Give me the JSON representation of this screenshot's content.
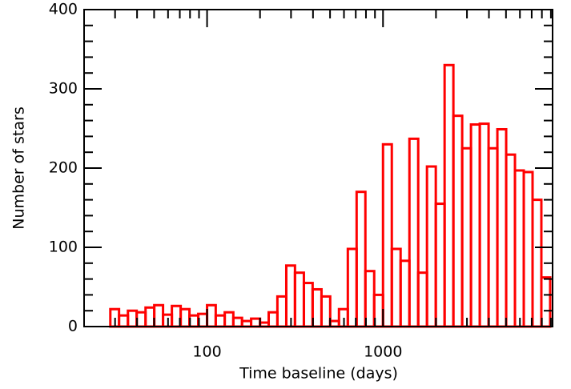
{
  "chart_data": {
    "type": "histogram",
    "x_label": "Time baseline (days)",
    "y_label": "Number of stars",
    "xlog": true,
    "color": "#ff0000",
    "bins": [
      28.2,
      31.6,
      35.5,
      39.8,
      44.7,
      50.1,
      56.2,
      63.1,
      70.8,
      79.4,
      89.1,
      100,
      112,
      126,
      141,
      158,
      178,
      200,
      224,
      251,
      282,
      316,
      355,
      398,
      447,
      501,
      562,
      631,
      708,
      794,
      891,
      1000,
      1122,
      1259,
      1413,
      1585,
      1778,
      1995,
      2239,
      2512,
      2818,
      3162,
      3548,
      3981,
      4467,
      5012,
      5623,
      6310,
      7079,
      7943,
      8913
    ],
    "counts": [
      22,
      14,
      20,
      18,
      24,
      27,
      15,
      26,
      22,
      14,
      16,
      27,
      14,
      18,
      11,
      7,
      10,
      5,
      18,
      38,
      77,
      68,
      55,
      47,
      38,
      7,
      22,
      98,
      170,
      70,
      40,
      230,
      98,
      83,
      237,
      68,
      202,
      155,
      330,
      266,
      225,
      255,
      256,
      225,
      249,
      217,
      197,
      195,
      160,
      62
    ],
    "xlim": [
      20,
      9200
    ],
    "xticks": [
      100,
      1000
    ],
    "xminorticks": [
      30,
      40,
      50,
      60,
      70,
      80,
      90,
      200,
      300,
      400,
      500,
      600,
      700,
      800,
      900,
      2000,
      3000,
      4000,
      5000,
      6000,
      7000,
      8000,
      9000
    ],
    "ylim": [
      0,
      400
    ],
    "yticks": [
      0,
      100,
      200,
      300,
      400
    ],
    "yminorticks": [
      20,
      40,
      60,
      80,
      120,
      140,
      160,
      180,
      220,
      240,
      260,
      280,
      320,
      340,
      360,
      380
    ]
  }
}
